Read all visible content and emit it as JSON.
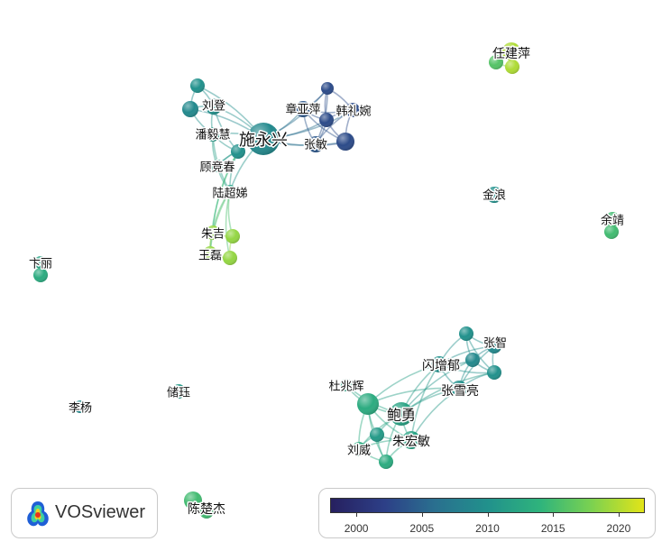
{
  "app": {
    "name": "VOSviewer"
  },
  "legend": {
    "years": [
      2000,
      2005,
      2010,
      2015,
      2020
    ],
    "range": [
      1998,
      2022
    ],
    "palette": [
      "#26205f",
      "#2d3f87",
      "#2a6f8f",
      "#21918c",
      "#2fb47c",
      "#7ad151",
      "#e2e418"
    ]
  },
  "nodes": [
    {
      "id": "n1",
      "label": "施永兴",
      "year": 2009,
      "weight": 5
    },
    {
      "id": "n2",
      "label": "章亚萍",
      "year": 2004,
      "weight": 2
    },
    {
      "id": "n3",
      "label": "韩礼婉",
      "year": 2003,
      "weight": 2
    },
    {
      "id": "n4",
      "label": "张敏",
      "year": 2004,
      "weight": 2
    },
    {
      "id": "n5",
      "label": "",
      "year": 2003,
      "weight": 1
    },
    {
      "id": "n6",
      "label": "",
      "year": 2003,
      "weight": 1
    },
    {
      "id": "n7",
      "label": "",
      "year": 2003,
      "weight": 2
    },
    {
      "id": "n8",
      "label": "刘登",
      "year": 2010,
      "weight": 2
    },
    {
      "id": "n9",
      "label": "",
      "year": 2010,
      "weight": 1
    },
    {
      "id": "n10",
      "label": "",
      "year": 2009,
      "weight": 2
    },
    {
      "id": "n11",
      "label": "潘毅慧",
      "year": 2011,
      "weight": 2
    },
    {
      "id": "n12",
      "label": "",
      "year": 2010,
      "weight": 1
    },
    {
      "id": "n13",
      "label": "顾竞春",
      "year": 2012,
      "weight": 1
    },
    {
      "id": "n14",
      "label": "陆超娣",
      "year": 2012,
      "weight": 1
    },
    {
      "id": "n15",
      "label": "朱吉",
      "year": 2019,
      "weight": 1
    },
    {
      "id": "n16",
      "label": "",
      "year": 2019,
      "weight": 1
    },
    {
      "id": "n17",
      "label": "王磊",
      "year": 2019,
      "weight": 1
    },
    {
      "id": "n18",
      "label": "",
      "year": 2019,
      "weight": 1
    },
    {
      "id": "n19",
      "label": "任建萍",
      "year": 2020,
      "weight": 2
    },
    {
      "id": "n20",
      "label": "",
      "year": 2016,
      "weight": 1
    },
    {
      "id": "n21",
      "label": "",
      "year": 2020,
      "weight": 1
    },
    {
      "id": "n22",
      "label": "金浪",
      "year": 2010,
      "weight": 1
    },
    {
      "id": "n23",
      "label": "余靖",
      "year": 2015,
      "weight": 1
    },
    {
      "id": "n24",
      "label": "",
      "year": 2015,
      "weight": 1
    },
    {
      "id": "n25",
      "label": "卞丽",
      "year": 2012,
      "weight": 1
    },
    {
      "id": "n26",
      "label": "",
      "year": 2013,
      "weight": 1
    },
    {
      "id": "n27",
      "label": "储珏",
      "year": 2011,
      "weight": 1
    },
    {
      "id": "n28",
      "label": "李杨",
      "year": 2009,
      "weight": 1
    },
    {
      "id": "n29",
      "label": "陈楚杰",
      "year": 2015,
      "weight": 2
    },
    {
      "id": "n30",
      "label": "",
      "year": 2015,
      "weight": 1
    },
    {
      "id": "n31",
      "label": "张智",
      "year": 2010,
      "weight": 1
    },
    {
      "id": "n32",
      "label": "",
      "year": 2009,
      "weight": 1
    },
    {
      "id": "n33",
      "label": "闪增郁",
      "year": 2010,
      "weight": 2
    },
    {
      "id": "n34",
      "label": "",
      "year": 2009,
      "weight": 1
    },
    {
      "id": "n35",
      "label": "",
      "year": 2010,
      "weight": 1
    },
    {
      "id": "n36",
      "label": "张雪亮",
      "year": 2010,
      "weight": 2
    },
    {
      "id": "n37",
      "label": "杜兆辉",
      "year": 2012,
      "weight": 1
    },
    {
      "id": "n38",
      "label": "",
      "year": 2013,
      "weight": 3
    },
    {
      "id": "n39",
      "label": "鲍勇",
      "year": 2012,
      "weight": 3
    },
    {
      "id": "n40",
      "label": "",
      "year": 2011,
      "weight": 1
    },
    {
      "id": "n41",
      "label": "朱宏敏",
      "year": 2012,
      "weight": 2
    },
    {
      "id": "n42",
      "label": "刘威",
      "year": 2013,
      "weight": 1
    },
    {
      "id": "n43",
      "label": "",
      "year": 2013,
      "weight": 1
    }
  ],
  "links": [
    [
      "n1",
      "n2"
    ],
    [
      "n1",
      "n3"
    ],
    [
      "n1",
      "n4"
    ],
    [
      "n1",
      "n5"
    ],
    [
      "n1",
      "n6"
    ],
    [
      "n1",
      "n7"
    ],
    [
      "n2",
      "n3"
    ],
    [
      "n2",
      "n4"
    ],
    [
      "n2",
      "n5"
    ],
    [
      "n2",
      "n6"
    ],
    [
      "n2",
      "n7"
    ],
    [
      "n3",
      "n4"
    ],
    [
      "n3",
      "n5"
    ],
    [
      "n3",
      "n6"
    ],
    [
      "n3",
      "n7"
    ],
    [
      "n4",
      "n5"
    ],
    [
      "n4",
      "n6"
    ],
    [
      "n4",
      "n7"
    ],
    [
      "n5",
      "n6"
    ],
    [
      "n6",
      "n7"
    ],
    [
      "n1",
      "n8"
    ],
    [
      "n1",
      "n9"
    ],
    [
      "n1",
      "n10"
    ],
    [
      "n1",
      "n11"
    ],
    [
      "n1",
      "n12"
    ],
    [
      "n1",
      "n13"
    ],
    [
      "n1",
      "n14"
    ],
    [
      "n8",
      "n9"
    ],
    [
      "n8",
      "n10"
    ],
    [
      "n8",
      "n11"
    ],
    [
      "n9",
      "n10"
    ],
    [
      "n10",
      "n11"
    ],
    [
      "n11",
      "n12"
    ],
    [
      "n12",
      "n13"
    ],
    [
      "n8",
      "n12"
    ],
    [
      "n11",
      "n13"
    ],
    [
      "n13",
      "n14"
    ],
    [
      "n12",
      "n14"
    ],
    [
      "n11",
      "n14"
    ],
    [
      "n14",
      "n15"
    ],
    [
      "n14",
      "n16"
    ],
    [
      "n14",
      "n17"
    ],
    [
      "n14",
      "n18"
    ],
    [
      "n12",
      "n15"
    ],
    [
      "n12",
      "n17"
    ],
    [
      "n15",
      "n16"
    ],
    [
      "n17",
      "n18"
    ],
    [
      "n15",
      "n17"
    ],
    [
      "n16",
      "n18"
    ],
    [
      "n19",
      "n20"
    ],
    [
      "n19",
      "n21"
    ],
    [
      "n20",
      "n21"
    ],
    [
      "n23",
      "n24"
    ],
    [
      "n25",
      "n26"
    ],
    [
      "n29",
      "n30"
    ],
    [
      "n31",
      "n32"
    ],
    [
      "n31",
      "n33"
    ],
    [
      "n31",
      "n34"
    ],
    [
      "n31",
      "n35"
    ],
    [
      "n32",
      "n33"
    ],
    [
      "n32",
      "n35"
    ],
    [
      "n32",
      "n34"
    ],
    [
      "n33",
      "n34"
    ],
    [
      "n33",
      "n35"
    ],
    [
      "n33",
      "n36"
    ],
    [
      "n34",
      "n36"
    ],
    [
      "n35",
      "n36"
    ],
    [
      "n34",
      "n35"
    ],
    [
      "n36",
      "n39"
    ],
    [
      "n33",
      "n39"
    ],
    [
      "n34",
      "n39"
    ],
    [
      "n36",
      "n38"
    ],
    [
      "n33",
      "n38"
    ],
    [
      "n35",
      "n39"
    ],
    [
      "n32",
      "n36"
    ],
    [
      "n37",
      "n38"
    ],
    [
      "n37",
      "n39"
    ],
    [
      "n38",
      "n39"
    ],
    [
      "n38",
      "n40"
    ],
    [
      "n38",
      "n41"
    ],
    [
      "n38",
      "n42"
    ],
    [
      "n38",
      "n43"
    ],
    [
      "n39",
      "n40"
    ],
    [
      "n39",
      "n41"
    ],
    [
      "n39",
      "n42"
    ],
    [
      "n39",
      "n43"
    ],
    [
      "n40",
      "n41"
    ],
    [
      "n40",
      "n42"
    ],
    [
      "n40",
      "n43"
    ],
    [
      "n41",
      "n42"
    ],
    [
      "n41",
      "n43"
    ],
    [
      "n42",
      "n43"
    ],
    [
      "n36",
      "n41"
    ],
    [
      "n33",
      "n41"
    ]
  ]
}
